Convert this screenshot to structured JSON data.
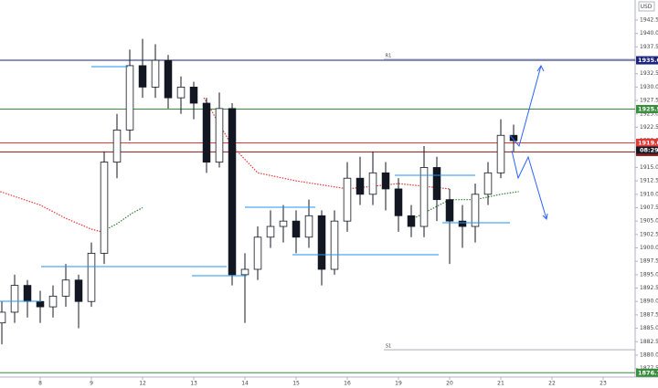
{
  "currency": "USD",
  "chart_data": {
    "type": "candlestick",
    "x": [
      -0.75,
      -0.5,
      -0.25,
      0,
      0.25,
      0.5,
      0.75,
      1,
      1.25,
      1.5,
      1.75,
      2,
      2.25,
      2.5,
      2.75,
      3,
      3.25,
      3.5,
      3.75,
      4,
      4.25,
      4.5,
      4.75,
      5,
      5.25,
      5.5,
      5.75,
      6,
      6.25,
      6.5,
      6.75,
      7,
      7.25,
      7.5,
      7.75,
      8,
      8.25,
      8.5,
      8.75,
      9,
      9.25
    ],
    "open": [
      1886,
      1888,
      1893,
      1890,
      1889,
      1891,
      1894,
      1890,
      1899,
      1916,
      1922,
      1934,
      1930,
      1935,
      1928,
      1930,
      1927,
      1916,
      1926,
      1895,
      1896,
      1902,
      1904,
      1905,
      1902,
      1906,
      1896,
      1905,
      1913,
      1910,
      1914,
      1911,
      1906,
      1904,
      1915,
      1909,
      1905,
      1904,
      1910,
      1914,
      1921
    ],
    "high": [
      1890,
      1895,
      1894,
      1892,
      1893,
      1897,
      1895,
      1901,
      1918,
      1925,
      1937,
      1939,
      1938,
      1936,
      1932,
      1931,
      1928,
      1929,
      1927,
      1899,
      1904,
      1907,
      1908,
      1907,
      1909,
      1907,
      1907,
      1916,
      1917,
      1918,
      1916,
      1913,
      1908,
      1919,
      1917,
      1911,
      1908,
      1912,
      1916,
      1924,
      1923
    ],
    "low": [
      1882,
      1886,
      1887,
      1886,
      1887,
      1889,
      1885,
      1889,
      1897,
      1913,
      1920,
      1928,
      1928,
      1926,
      1925,
      1924,
      1914,
      1915,
      1893,
      1886,
      1894,
      1900,
      1901,
      1899,
      1900,
      1893,
      1895,
      1903,
      1908,
      1908,
      1907,
      1903,
      1902,
      1902,
      1905,
      1897,
      1900,
      1901,
      1908,
      1913,
      1918
    ],
    "close": [
      1888,
      1893,
      1890,
      1889,
      1891,
      1894,
      1890,
      1899,
      1916,
      1922,
      1934,
      1930,
      1935,
      1928,
      1930,
      1927,
      1916,
      1926,
      1895,
      1896,
      1902,
      1904,
      1905,
      1902,
      1906,
      1896,
      1905,
      1913,
      1910,
      1914,
      1911,
      1906,
      1904,
      1915,
      1909,
      1905,
      1904,
      1910,
      1914,
      1921,
      1920
    ],
    "up_color": "#ffffff",
    "down_color": "#131722",
    "lines": [
      {
        "color": "#e53935",
        "x": [
          -0.78,
          0,
          0.5,
          1,
          1.2
        ],
        "y": [
          1910.5,
          1908,
          1905.5,
          1903.5,
          1903
        ]
      },
      {
        "color": "#2e7d32",
        "x": [
          1.2,
          1.5,
          1.8,
          2.0
        ],
        "y": [
          1903,
          1904.5,
          1906.5,
          1907.5
        ]
      },
      {
        "color": "#e53935",
        "x": [
          3.2,
          3.75,
          4.25,
          5,
          6,
          7,
          8
        ],
        "y": [
          1928,
          1919,
          1914,
          1912.5,
          1911,
          1912,
          1911
        ]
      },
      {
        "color": "#2e7d32",
        "x": [
          7.2,
          7.6,
          8,
          8.5,
          9.0,
          9.35
        ],
        "y": [
          1905,
          1907,
          1909,
          1909,
          1910,
          1910.5
        ]
      }
    ],
    "price_lines": [
      {
        "value": 1935,
        "label": "1935.0",
        "color": "#1a237e"
      },
      {
        "value": 1925.9,
        "label": "1925.9",
        "color": "#388e3c"
      },
      {
        "value": 1919.6,
        "label": "1919.6",
        "color": "#e53935"
      },
      {
        "value": 1917.9,
        "label": "1917.9",
        "color": "#8b1a1a"
      },
      {
        "value": 1876.7,
        "label": "1876.7",
        "color": "#388e3c"
      }
    ],
    "countdown": "08:29",
    "levels": [
      {
        "value": 1935.2,
        "label": "R1"
      },
      {
        "value": 1881,
        "label": "S1"
      }
    ],
    "xlim": [
      -0.786,
      11.625
    ],
    "ylim": [
      1875.9,
      1946.25
    ],
    "xticks": [
      {
        "value": 0,
        "label": "8"
      },
      {
        "value": 1,
        "label": "9"
      },
      {
        "value": 2,
        "label": "12"
      },
      {
        "value": 3,
        "label": "13"
      },
      {
        "value": 4,
        "label": "14"
      },
      {
        "value": 5,
        "label": "15"
      },
      {
        "value": 6,
        "label": "16"
      },
      {
        "value": 7,
        "label": "19"
      },
      {
        "value": 8,
        "label": "20"
      },
      {
        "value": 9,
        "label": "21"
      },
      {
        "value": 10,
        "label": "22"
      },
      {
        "value": 11,
        "label": "23"
      }
    ],
    "yticks": [
      {
        "value": 1877.5,
        "label": "1877.5"
      },
      {
        "value": 1880,
        "label": "1880.0"
      },
      {
        "value": 1882.5,
        "label": "1882.5"
      },
      {
        "value": 1885,
        "label": "1885.0"
      },
      {
        "value": 1887.5,
        "label": "1887.5"
      },
      {
        "value": 1890,
        "label": "1890.0"
      },
      {
        "value": 1892.5,
        "label": "1892.5"
      },
      {
        "value": 1895,
        "label": "1895.0"
      },
      {
        "value": 1897.5,
        "label": "1897.5"
      },
      {
        "value": 1900,
        "label": "1900.0"
      },
      {
        "value": 1902.5,
        "label": "1902.5"
      },
      {
        "value": 1905,
        "label": "1905.0"
      },
      {
        "value": 1907.5,
        "label": "1907.5"
      },
      {
        "value": 1910,
        "label": "1910.0"
      },
      {
        "value": 1912.5,
        "label": "1912.5"
      },
      {
        "value": 1915,
        "label": "1915.0"
      },
      {
        "value": 1917.5,
        "label": "1917.5"
      },
      {
        "value": 1920,
        "label": "1920.0"
      },
      {
        "value": 1922.5,
        "label": "1922.5"
      },
      {
        "value": 1925,
        "label": "1925.0"
      },
      {
        "value": 1927.5,
        "label": "1927.5"
      },
      {
        "value": 1930,
        "label": "1930.0"
      },
      {
        "value": 1932.5,
        "label": "1932.5"
      },
      {
        "value": 1935,
        "label": "1935.0"
      },
      {
        "value": 1937.5,
        "label": "1937.5"
      },
      {
        "value": 1940,
        "label": "1940.0"
      },
      {
        "value": 1942.5,
        "label": "1942.5"
      }
    ]
  }
}
